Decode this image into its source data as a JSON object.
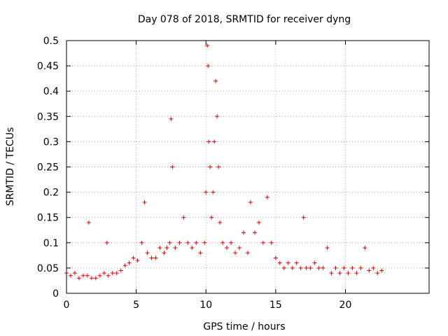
{
  "chart_data": {
    "type": "scatter",
    "title": "Day 078 of 2018, SRMTID for receiver dyng",
    "xlabel": "GPS time / hours",
    "ylabel": "SRMTID / TECUs",
    "xlim": [
      0,
      26
    ],
    "ylim": [
      0,
      0.5
    ],
    "xticks": [
      0,
      5,
      10,
      15,
      20
    ],
    "yticks": [
      0,
      0.05,
      0.1,
      0.15,
      0.2,
      0.25,
      0.3,
      0.35,
      0.4,
      0.45,
      0.5
    ],
    "xtick_labels": [
      "0",
      "5",
      "10",
      "15",
      "20"
    ],
    "ytick_labels": [
      "0",
      "0.05",
      "0.1",
      "0.15",
      "0.2",
      "0.25",
      "0.3",
      "0.35",
      "0.4",
      "0.45",
      "0.5"
    ],
    "grid": true,
    "marker": "+",
    "color": "#e00000",
    "series": [
      {
        "name": "SRMTID",
        "x": [
          0.0,
          0.3,
          0.6,
          0.9,
          1.2,
          1.5,
          1.6,
          1.8,
          2.1,
          2.4,
          2.7,
          2.9,
          3.0,
          3.3,
          3.6,
          3.9,
          4.2,
          4.5,
          4.8,
          5.1,
          5.4,
          5.6,
          5.8,
          6.1,
          6.4,
          6.7,
          7.0,
          7.2,
          7.4,
          7.5,
          7.6,
          7.8,
          8.1,
          8.4,
          8.7,
          9.0,
          9.3,
          9.6,
          9.9,
          10.0,
          10.1,
          10.15,
          10.2,
          10.3,
          10.4,
          10.5,
          10.6,
          10.7,
          10.8,
          10.9,
          11.0,
          11.2,
          11.5,
          11.8,
          12.1,
          12.4,
          12.7,
          13.0,
          13.2,
          13.5,
          13.8,
          14.1,
          14.4,
          14.7,
          15.0,
          15.3,
          15.6,
          15.9,
          16.2,
          16.5,
          16.8,
          17.0,
          17.2,
          17.5,
          17.8,
          18.1,
          18.4,
          18.7,
          19.0,
          19.3,
          19.6,
          19.9,
          20.2,
          20.5,
          20.8,
          21.1,
          21.4,
          21.7,
          22.0,
          22.3,
          22.6
        ],
        "y": [
          0.04,
          0.035,
          0.04,
          0.03,
          0.035,
          0.035,
          0.14,
          0.03,
          0.03,
          0.035,
          0.04,
          0.1,
          0.035,
          0.04,
          0.04,
          0.045,
          0.055,
          0.06,
          0.07,
          0.065,
          0.1,
          0.18,
          0.08,
          0.07,
          0.07,
          0.09,
          0.08,
          0.09,
          0.1,
          0.345,
          0.25,
          0.09,
          0.1,
          0.15,
          0.1,
          0.09,
          0.1,
          0.08,
          0.1,
          0.2,
          0.49,
          0.45,
          0.3,
          0.25,
          0.15,
          0.2,
          0.3,
          0.42,
          0.35,
          0.25,
          0.14,
          0.1,
          0.09,
          0.1,
          0.08,
          0.09,
          0.12,
          0.08,
          0.18,
          0.12,
          0.14,
          0.1,
          0.19,
          0.1,
          0.07,
          0.06,
          0.05,
          0.06,
          0.05,
          0.06,
          0.05,
          0.15,
          0.05,
          0.05,
          0.06,
          0.05,
          0.05,
          0.09,
          0.04,
          0.05,
          0.04,
          0.05,
          0.04,
          0.05,
          0.04,
          0.05,
          0.09,
          0.045,
          0.05,
          0.04,
          0.045
        ]
      }
    ]
  }
}
